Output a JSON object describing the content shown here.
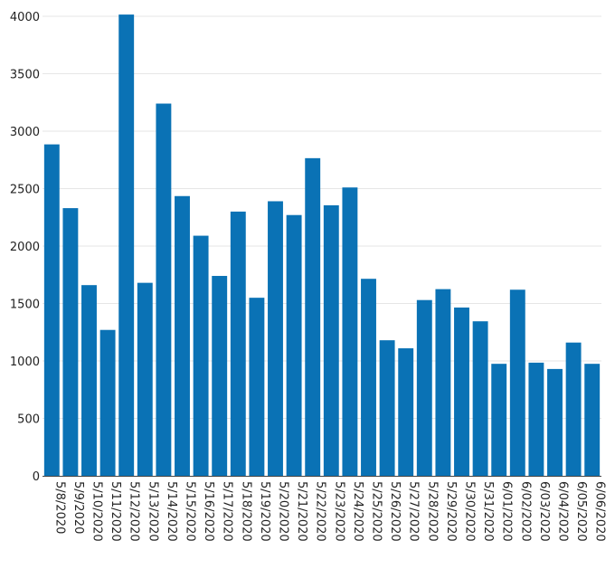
{
  "chart_data": {
    "type": "bar",
    "title": "",
    "xlabel": "",
    "ylabel": "",
    "ylim": [
      0,
      4000
    ],
    "yticks": [
      "0",
      "500",
      "1000",
      "1500",
      "2000",
      "2500",
      "3000",
      "3500",
      "4000"
    ],
    "grid": true,
    "bar_color": "#0a72b5",
    "categories": [
      "5/8/2020",
      "5/9/2020",
      "5/10/2020",
      "5/11/2020",
      "5/12/2020",
      "5/13/2020",
      "5/14/2020",
      "5/15/2020",
      "5/16/2020",
      "5/17/2020",
      "5/18/2020",
      "5/19/2020",
      "5/20/2020",
      "5/21/2020",
      "5/22/2020",
      "5/23/2020",
      "5/24/2020",
      "5/25/2020",
      "5/26/2020",
      "5/27/2020",
      "5/28/2020",
      "5/29/2020",
      "5/30/2020",
      "5/31/2020",
      "6/01/2020",
      "6/02/2020",
      "6/03/2020",
      "6/04/2020",
      "6/05/2020",
      "6/06/2020"
    ],
    "values": [
      2885,
      2330,
      1660,
      1270,
      4015,
      1680,
      3240,
      2435,
      2090,
      1740,
      2300,
      1550,
      2390,
      2270,
      2765,
      2355,
      2510,
      1715,
      1180,
      1110,
      1530,
      1625,
      1465,
      1345,
      975,
      1620,
      985,
      930,
      1160,
      975
    ]
  }
}
